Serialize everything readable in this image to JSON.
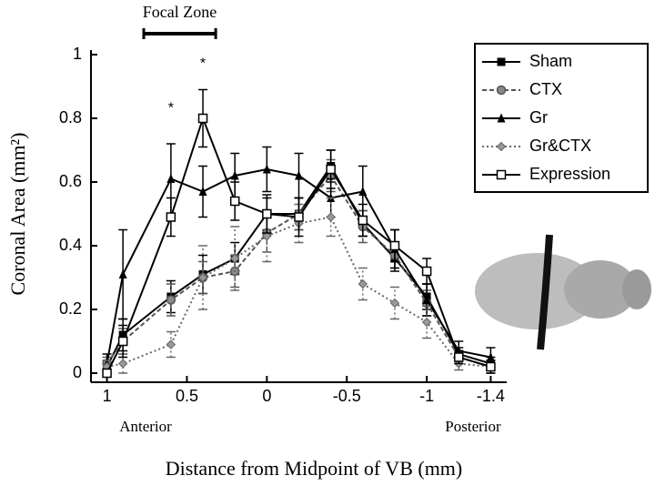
{
  "chart_data": {
    "type": "line",
    "ylabel": "Coronal Area (mm²)",
    "xlabel": "Distance from Midpoint of VB (mm)",
    "x": [
      1.0,
      0.9,
      0.6,
      0.4,
      0.2,
      0,
      -0.2,
      -0.4,
      -0.6,
      -0.8,
      -1.0,
      -1.2,
      -1.4
    ],
    "series": [
      {
        "name": "Sham",
        "color": "#000000",
        "marker": "square",
        "dash": "solid",
        "values": [
          0.02,
          0.12,
          0.24,
          0.31,
          0.36,
          0.5,
          0.5,
          0.65,
          0.47,
          0.36,
          0.24,
          0.06,
          0.03
        ],
        "errors": [
          0.02,
          0.05,
          0.05,
          0.06,
          0.05,
          0.05,
          0.05,
          0.05,
          0.04,
          0.04,
          0.04,
          0.02,
          0.02
        ]
      },
      {
        "name": "CTX",
        "color": "#555555",
        "marker": "circle",
        "dash": "dashed",
        "values": [
          0.03,
          0.1,
          0.23,
          0.3,
          0.32,
          0.44,
          0.5,
          0.62,
          0.46,
          0.37,
          0.22,
          0.05,
          0.02
        ],
        "errors": [
          0.02,
          0.04,
          0.05,
          0.05,
          0.05,
          0.06,
          0.05,
          0.05,
          0.05,
          0.04,
          0.04,
          0.02,
          0.02
        ]
      },
      {
        "name": "Gr",
        "color": "#000000",
        "marker": "triangle",
        "dash": "solid",
        "values": [
          0.03,
          0.31,
          0.61,
          0.57,
          0.62,
          0.64,
          0.62,
          0.55,
          0.57,
          0.39,
          0.23,
          0.07,
          0.05
        ],
        "errors": [
          0.03,
          0.14,
          0.11,
          0.08,
          0.07,
          0.07,
          0.07,
          0.06,
          0.08,
          0.06,
          0.05,
          0.03,
          0.03
        ]
      },
      {
        "name": "Gr&CTX",
        "color": "#666666",
        "marker": "diamond",
        "dash": "dotted",
        "values": [
          0.02,
          0.03,
          0.09,
          0.3,
          0.36,
          0.43,
          0.47,
          0.49,
          0.28,
          0.22,
          0.16,
          0.03,
          0.02
        ],
        "errors": [
          0.02,
          0.03,
          0.04,
          0.1,
          0.1,
          0.08,
          0.06,
          0.06,
          0.05,
          0.05,
          0.05,
          0.02,
          0.02
        ]
      },
      {
        "name": "Expression",
        "color": "#000000",
        "marker": "open-square",
        "dash": "solid",
        "values": [
          0,
          0.1,
          0.49,
          0.8,
          0.54,
          0.5,
          0.49,
          0.64,
          0.48,
          0.4,
          0.32,
          0.05,
          0.02
        ],
        "errors": [
          0.01,
          0.05,
          0.06,
          0.09,
          0.06,
          0.06,
          0.06,
          0.06,
          0.05,
          0.05,
          0.04,
          0.02,
          0.02
        ]
      }
    ],
    "xlim": [
      1.1,
      -1.5
    ],
    "ylim": [
      0,
      1
    ],
    "xticks": [
      1,
      0.5,
      0,
      -0.5,
      -1,
      -1.4
    ],
    "yticks": [
      0,
      0.2,
      0.4,
      0.6,
      0.8,
      1
    ],
    "annotations": [
      {
        "text": "*",
        "x": 0.4,
        "y": 0.97
      },
      {
        "text": "*",
        "x": 0.6,
        "y": 0.83
      }
    ],
    "focal_zone": {
      "label": "Focal Zone",
      "range": [
        0.77,
        0.32
      ]
    },
    "direction_labels": [
      "Anterior",
      "Posterior"
    ],
    "legend": "upper right"
  }
}
